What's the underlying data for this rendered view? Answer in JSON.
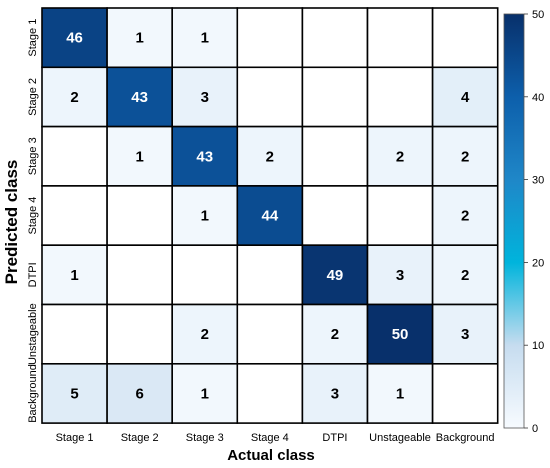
{
  "chart_data": {
    "type": "heatmap",
    "xlabel": "Actual class",
    "ylabel": "Predicted class",
    "x_categories": [
      "Stage 1",
      "Stage 2",
      "Stage 3",
      "Stage 4",
      "DTPI",
      "Unstageable",
      "Background"
    ],
    "y_categories": [
      "Stage 1",
      "Stage 2",
      "Stage 3",
      "Stage 4",
      "DTPI",
      "Unstageable",
      "Background"
    ],
    "values": [
      [
        46,
        1,
        1,
        null,
        null,
        null,
        null
      ],
      [
        2,
        43,
        3,
        null,
        null,
        null,
        4
      ],
      [
        null,
        1,
        43,
        2,
        null,
        2,
        2
      ],
      [
        null,
        null,
        1,
        44,
        null,
        null,
        2
      ],
      [
        1,
        null,
        null,
        null,
        49,
        3,
        2
      ],
      [
        null,
        null,
        2,
        null,
        2,
        50,
        3
      ],
      [
        5,
        6,
        1,
        null,
        3,
        1,
        null
      ]
    ],
    "colorbar": {
      "range": [
        0,
        50
      ],
      "ticks": [
        0,
        10,
        20,
        30,
        40,
        50
      ],
      "colormap": "Blues"
    },
    "grid": true
  }
}
